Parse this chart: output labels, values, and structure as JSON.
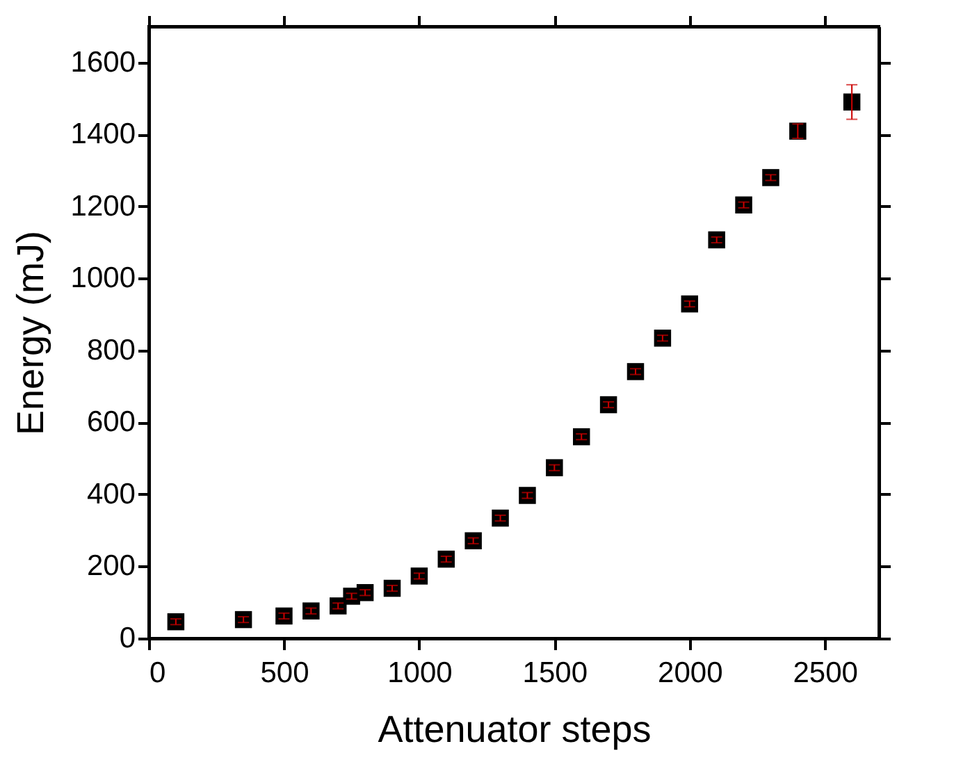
{
  "chart_data": {
    "type": "scatter",
    "xlabel": "Attenuator steps",
    "ylabel": "Energy (mJ)",
    "x": [
      100,
      350,
      500,
      600,
      700,
      750,
      800,
      900,
      1000,
      1100,
      1200,
      1300,
      1400,
      1500,
      1600,
      1700,
      1800,
      1900,
      2000,
      2100,
      2200,
      2300,
      2400,
      2600
    ],
    "series": [
      {
        "color": "#000000",
        "values": [
          46,
          52,
          62,
          76,
          90,
          117,
          127,
          139,
          173,
          220,
          271,
          334,
          397,
          474,
          560,
          649,
          741,
          834,
          929,
          1107,
          1204,
          1280,
          1409,
          1490
        ],
        "errors": [
          8,
          8,
          8,
          8,
          8,
          8,
          8,
          8,
          8,
          8,
          8,
          8,
          8,
          8,
          8,
          8,
          8,
          8,
          8,
          8,
          8,
          8,
          20,
          48
        ]
      }
    ],
    "xlim": [
      0,
      2700
    ],
    "xticks": [
      0,
      500,
      1000,
      1500,
      2000,
      2500
    ],
    "ylim": [
      0,
      1700
    ],
    "yticks": [
      0,
      200,
      400,
      600,
      800,
      1000,
      1200,
      1400,
      1600
    ],
    "marker": "square",
    "grid": false,
    "legend": false
  }
}
